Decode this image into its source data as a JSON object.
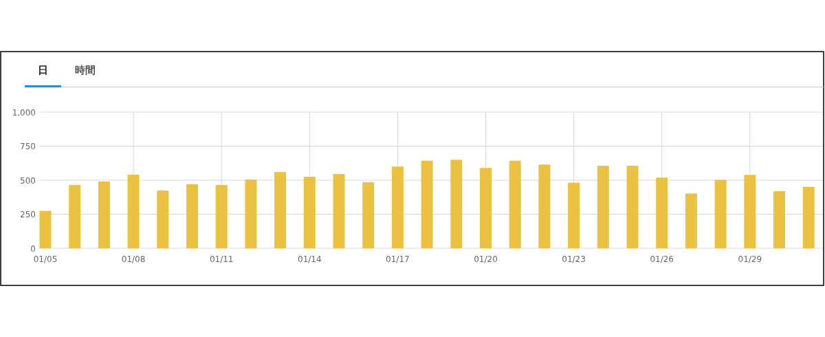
{
  "chart_data": {
    "type": "bar",
    "annotations": [
      "日",
      "時間"
    ],
    "categories": [
      "01/05",
      null,
      null,
      "01/08",
      null,
      null,
      "01/11",
      null,
      null,
      "01/14",
      null,
      null,
      "01/17",
      null,
      null,
      "01/20",
      null,
      null,
      "01/23",
      null,
      null,
      "01/26",
      null,
      null,
      "01/29",
      null,
      null
    ],
    "values": [
      275,
      465,
      490,
      540,
      424,
      470,
      465,
      505,
      560,
      525,
      545,
      485,
      600,
      643,
      650,
      590,
      643,
      615,
      481,
      606,
      606,
      519,
      402,
      503,
      539,
      419,
      451
    ],
    "color": "#ebc142",
    "ylim": [
      0,
      1000
    ],
    "yticks": [
      0,
      250,
      500,
      750,
      {
        "value": 1000,
        "label": "1,000"
      }
    ],
    "grid": true
  }
}
